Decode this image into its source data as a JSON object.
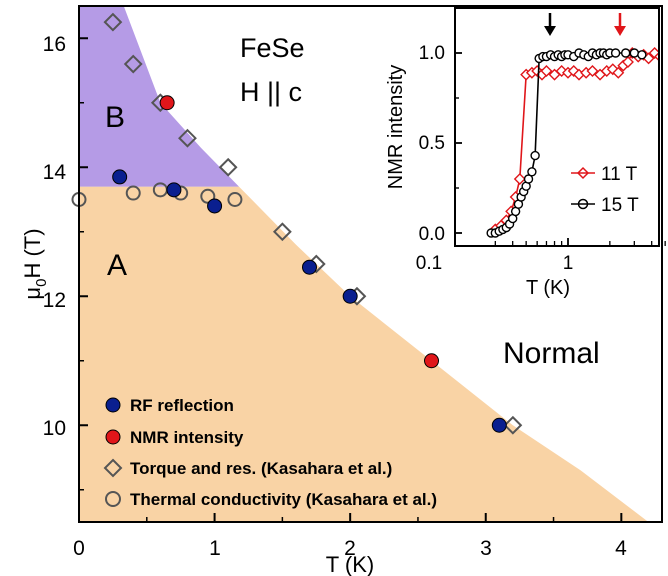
{
  "chart_data": [
    {
      "type": "scatter",
      "xlabel": "T (K)",
      "ylabel_main": "μ",
      "ylabel_sub": "0",
      "ylabel_rest": "H (T)",
      "xlim": [
        0,
        4.3
      ],
      "ylim": [
        8.5,
        16.5
      ],
      "xticks": [
        "0",
        "1",
        "2",
        "3",
        "4"
      ],
      "yticks": [
        "10",
        "12",
        "14",
        "16"
      ],
      "annotations": [
        "FeSe",
        "H || c",
        "B",
        "A",
        "Normal"
      ],
      "regions": {
        "phase_A_color": "#f9d3a5",
        "phase_B_color": "#b59be6",
        "A_boundary": [
          [
            0,
            8.5
          ],
          [
            0,
            13.7
          ],
          [
            1.18,
            13.7
          ],
          [
            1.6,
            12.8
          ],
          [
            2.0,
            12.0
          ],
          [
            2.6,
            11.0
          ],
          [
            3.2,
            10.0
          ],
          [
            3.7,
            9.3
          ],
          [
            4.2,
            8.5
          ]
        ],
        "B_boundary": [
          [
            0,
            13.7
          ],
          [
            0,
            16.5
          ],
          [
            0.33,
            16.5
          ],
          [
            0.6,
            15.0
          ],
          [
            0.9,
            14.3
          ],
          [
            1.18,
            13.7
          ]
        ]
      },
      "legend": [
        {
          "label": "RF reflection",
          "marker": "filled-circle",
          "color": "#0a1f8f"
        },
        {
          "label": "NMR intensity",
          "marker": "filled-circle",
          "color": "#e0161a"
        },
        {
          "label": "Torque and res. (Kasahara et al.)",
          "marker": "open-diamond",
          "color": "#555555"
        },
        {
          "label": "Thermal conductivity (Kasahara et al.)",
          "marker": "open-circle",
          "color": "#555555"
        }
      ],
      "series": [
        {
          "name": "RF reflection",
          "x": [
            0.3,
            0.7,
            1.0,
            1.7,
            2.0,
            3.1
          ],
          "y": [
            13.85,
            13.65,
            13.4,
            12.45,
            12.0,
            10.0
          ]
        },
        {
          "name": "NMR intensity",
          "x": [
            0.65,
            2.6
          ],
          "y": [
            15.0,
            11.0
          ]
        },
        {
          "name": "Torque and res. (Kasahara et al.)",
          "x": [
            0.25,
            0.4,
            0.6,
            0.8,
            1.1,
            1.5,
            1.75,
            2.05,
            3.2
          ],
          "y": [
            16.25,
            15.6,
            15.0,
            14.45,
            14.0,
            13.0,
            12.5,
            12.0,
            10.0
          ]
        },
        {
          "name": "Thermal conductivity (Kasahara et al.)",
          "x": [
            0.0,
            0.4,
            0.6,
            0.75,
            0.95,
            1.15
          ],
          "y": [
            13.5,
            13.6,
            13.65,
            13.6,
            13.55,
            13.5
          ]
        }
      ]
    },
    {
      "type": "line",
      "xlabel": "T (K)",
      "ylabel": "NMR intensity",
      "xscale": "log",
      "xlim": [
        0.2,
        6.0
      ],
      "ylim": [
        -0.05,
        1.2
      ],
      "xticks": [
        "0.1",
        "1"
      ],
      "yticks": [
        "0.0",
        "0.5",
        "1.0"
      ],
      "arrows": [
        {
          "x": 0.62,
          "color": "#000000"
        },
        {
          "x": 2.8,
          "color": "#e0161a"
        }
      ],
      "series": [
        {
          "name": "11 T",
          "marker": "open-diamond",
          "color": "#e0161a",
          "x": [
            0.3,
            0.33,
            0.36,
            0.39,
            0.42,
            0.45,
            0.5,
            0.55,
            0.6,
            0.65,
            0.7,
            0.8,
            0.9,
            1.0,
            1.1,
            1.2,
            1.35,
            1.5,
            1.7,
            1.9,
            2.1,
            2.3,
            2.5,
            2.7,
            2.9,
            3.2,
            3.5,
            3.8,
            4.2,
            4.6,
            5.0,
            5.5
          ],
          "y": [
            0.02,
            0.04,
            0.07,
            0.12,
            0.2,
            0.3,
            0.88,
            0.89,
            0.9,
            0.88,
            0.9,
            0.88,
            0.9,
            0.89,
            0.9,
            0.88,
            0.89,
            0.9,
            0.88,
            0.9,
            0.91,
            0.89,
            0.93,
            0.95,
            1.0,
            0.98,
            0.99,
            0.97,
            1.0,
            0.98,
            0.99,
            0.97
          ]
        },
        {
          "name": "15 T",
          "marker": "open-circle",
          "color": "#000000",
          "x": [
            0.28,
            0.3,
            0.32,
            0.34,
            0.36,
            0.38,
            0.4,
            0.42,
            0.44,
            0.46,
            0.48,
            0.5,
            0.52,
            0.55,
            0.58,
            0.62,
            0.66,
            0.7,
            0.75,
            0.8,
            0.85,
            0.9,
            0.95,
            1.0,
            1.1,
            1.2,
            1.3,
            1.4,
            1.5,
            1.6,
            1.7,
            1.8,
            1.9,
            2.0,
            2.2,
            2.6,
            3.0,
            3.4
          ],
          "y": [
            0.0,
            0.0,
            0.01,
            0.02,
            0.03,
            0.05,
            0.08,
            0.12,
            0.16,
            0.2,
            0.23,
            0.26,
            0.3,
            0.34,
            0.43,
            0.97,
            0.98,
            0.98,
            0.99,
            0.98,
            0.99,
            0.98,
            0.99,
            0.99,
            0.98,
            1.0,
            0.99,
            0.98,
            1.0,
            0.99,
            1.0,
            1.0,
            0.99,
            1.0,
            1.0,
            1.0,
            1.0,
            0.99
          ]
        }
      ]
    }
  ]
}
